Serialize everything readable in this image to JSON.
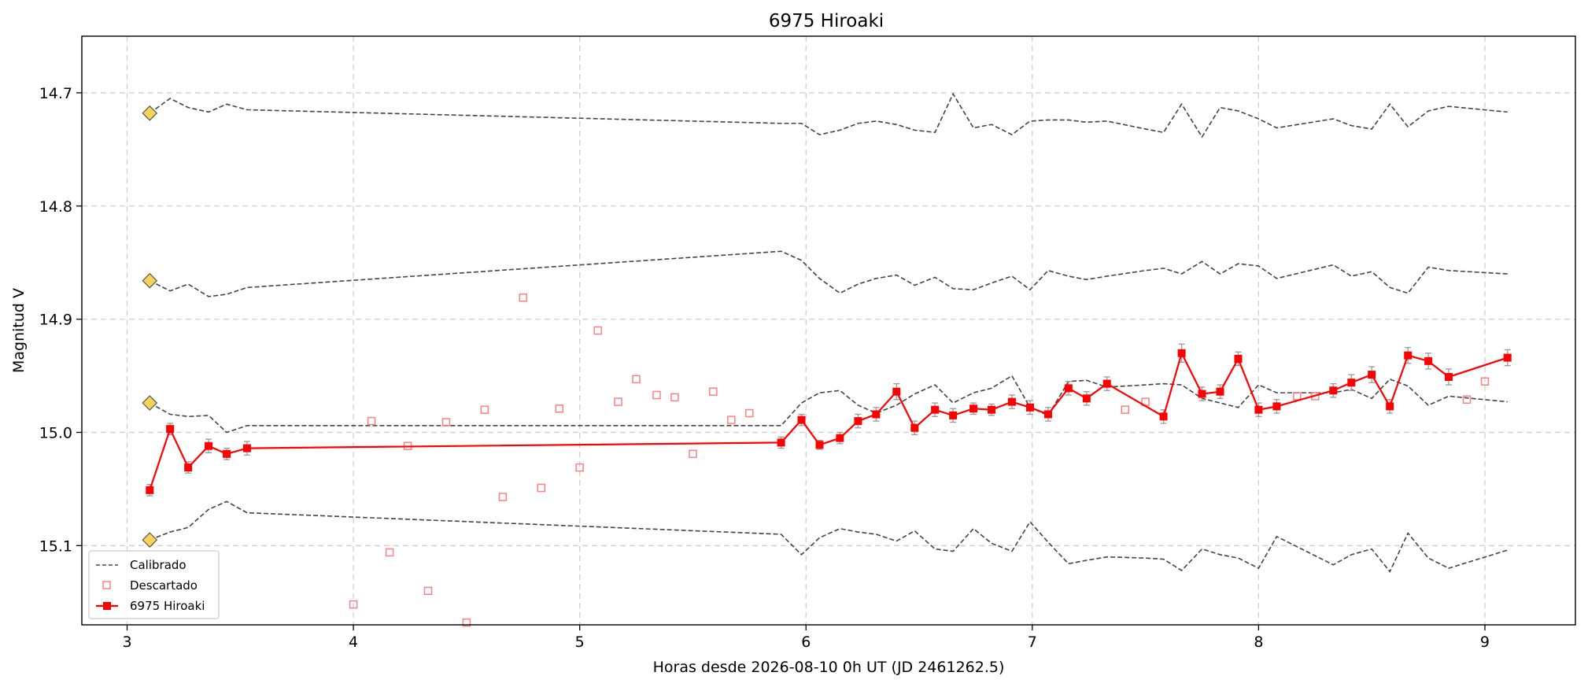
{
  "chart_data": {
    "type": "line",
    "title": "6975 Hiroaki",
    "xlabel": "Horas desde 2026-08-10 0h UT (JD 2461262.5)",
    "ylabel": "Magnitud V",
    "xlim": [
      2.8,
      9.4
    ],
    "ylim": [
      15.17,
      14.65
    ],
    "y_inverted": true,
    "x_ticks": [
      3,
      4,
      5,
      6,
      7,
      8,
      9
    ],
    "y_ticks": [
      14.7,
      14.8,
      14.9,
      15.0,
      15.1
    ],
    "x_tick_labels": [
      "3",
      "4",
      "5",
      "6",
      "7",
      "8",
      "9"
    ],
    "y_tick_labels": [
      "14.7",
      "14.8",
      "14.9",
      "15.0",
      "15.1"
    ],
    "grid": true,
    "legend_position": "bottom-left",
    "legend": [
      "Calibrado",
      "Descartado",
      "6975 Hiroaki"
    ],
    "colors": {
      "calibrado": "#444444",
      "descartado": "#ff8080",
      "target": "#ff0000",
      "marker_yellow": "#f7d35c",
      "errorbar": "#999999"
    },
    "calibrado_markers": {
      "x": 3.1,
      "y": [
        14.718,
        14.866,
        14.974,
        15.095
      ]
    },
    "calibrado_series": [
      {
        "x": [
          3.1,
          3.19,
          3.27,
          3.36,
          3.44,
          3.53,
          5.89,
          5.98,
          6.06,
          6.15,
          6.23,
          6.31,
          6.4,
          6.48,
          6.57,
          6.65,
          6.74,
          6.82,
          6.91,
          6.99,
          7.07,
          7.16,
          7.24,
          7.33,
          7.5,
          7.58,
          7.66,
          7.75,
          7.83,
          7.91,
          8.0,
          8.08,
          8.33,
          8.41,
          8.5,
          8.58,
          8.66,
          8.75,
          8.84,
          9.1
        ],
        "y": [
          14.718,
          14.705,
          14.713,
          14.717,
          14.71,
          14.715,
          14.727,
          14.727,
          14.737,
          14.733,
          14.727,
          14.725,
          14.728,
          14.733,
          14.735,
          14.701,
          14.731,
          14.728,
          14.737,
          14.725,
          14.724,
          14.724,
          14.726,
          14.725,
          14.732,
          14.735,
          14.71,
          14.739,
          14.713,
          14.716,
          14.723,
          14.731,
          14.723,
          14.729,
          14.732,
          14.71,
          14.73,
          14.716,
          14.712,
          14.717
        ]
      },
      {
        "x": [
          3.1,
          3.19,
          3.27,
          3.36,
          3.44,
          3.53,
          5.89,
          5.98,
          6.06,
          6.15,
          6.23,
          6.31,
          6.4,
          6.48,
          6.57,
          6.65,
          6.74,
          6.82,
          6.91,
          6.99,
          7.07,
          7.16,
          7.24,
          7.33,
          7.5,
          7.58,
          7.66,
          7.75,
          7.83,
          7.91,
          8.0,
          8.08,
          8.33,
          8.41,
          8.5,
          8.58,
          8.66,
          8.75,
          8.84,
          9.1
        ],
        "y": [
          14.866,
          14.875,
          14.869,
          14.88,
          14.878,
          14.872,
          14.84,
          14.848,
          14.864,
          14.877,
          14.869,
          14.864,
          14.861,
          14.87,
          14.863,
          14.873,
          14.874,
          14.868,
          14.862,
          14.874,
          14.857,
          14.862,
          14.865,
          14.862,
          14.857,
          14.855,
          14.86,
          14.849,
          14.86,
          14.851,
          14.853,
          14.864,
          14.852,
          14.862,
          14.858,
          14.872,
          14.877,
          14.854,
          14.857,
          14.86
        ]
      },
      {
        "x": [
          3.1,
          3.19,
          3.27,
          3.36,
          3.44,
          3.53,
          5.89,
          5.98,
          6.06,
          6.15,
          6.23,
          6.31,
          6.4,
          6.48,
          6.57,
          6.65,
          6.74,
          6.82,
          6.91,
          6.99,
          7.07,
          7.16,
          7.24,
          7.33,
          7.5,
          7.58,
          7.66,
          7.75,
          7.83,
          7.91,
          8.0,
          8.08,
          8.33,
          8.41,
          8.5,
          8.58,
          8.66,
          8.75,
          8.84,
          9.1
        ],
        "y": [
          14.974,
          14.984,
          14.986,
          14.985,
          15.0,
          14.994,
          14.994,
          14.974,
          14.965,
          14.963,
          14.976,
          14.983,
          14.976,
          14.966,
          14.958,
          14.974,
          14.965,
          14.961,
          14.95,
          14.978,
          14.985,
          14.955,
          14.954,
          14.96,
          14.958,
          14.957,
          14.958,
          14.97,
          14.974,
          14.978,
          14.958,
          14.965,
          14.965,
          14.962,
          14.97,
          14.953,
          14.959,
          14.976,
          14.968,
          14.973
        ]
      },
      {
        "x": [
          3.1,
          3.19,
          3.27,
          3.36,
          3.44,
          3.53,
          5.89,
          5.98,
          6.06,
          6.15,
          6.23,
          6.31,
          6.4,
          6.48,
          6.57,
          6.65,
          6.74,
          6.82,
          6.91,
          6.99,
          7.07,
          7.16,
          7.24,
          7.33,
          7.5,
          7.58,
          7.66,
          7.75,
          7.83,
          7.91,
          8.0,
          8.08,
          8.33,
          8.41,
          8.5,
          8.58,
          8.66,
          8.75,
          8.84,
          9.1
        ],
        "y": [
          15.095,
          15.088,
          15.084,
          15.068,
          15.061,
          15.071,
          15.09,
          15.108,
          15.093,
          15.085,
          15.088,
          15.09,
          15.096,
          15.087,
          15.103,
          15.105,
          15.085,
          15.098,
          15.105,
          15.079,
          15.097,
          15.116,
          15.113,
          15.11,
          15.111,
          15.112,
          15.122,
          15.103,
          15.108,
          15.111,
          15.12,
          15.092,
          15.117,
          15.108,
          15.103,
          15.123,
          15.089,
          15.111,
          15.12,
          15.104
        ]
      }
    ],
    "target_series": {
      "name": "6975 Hiroaki",
      "x": [
        3.1,
        3.19,
        3.27,
        3.36,
        3.44,
        3.53,
        5.89,
        5.98,
        6.06,
        6.15,
        6.23,
        6.31,
        6.4,
        6.48,
        6.57,
        6.65,
        6.74,
        6.82,
        6.91,
        6.99,
        7.07,
        7.16,
        7.24,
        7.33,
        7.58,
        7.66,
        7.75,
        7.83,
        7.91,
        8.0,
        8.08,
        8.33,
        8.41,
        8.5,
        8.58,
        8.66,
        8.75,
        8.84,
        9.1
      ],
      "y": [
        15.051,
        14.997,
        15.031,
        15.012,
        15.019,
        15.014,
        15.009,
        14.989,
        15.011,
        15.005,
        14.99,
        14.984,
        14.964,
        14.996,
        14.98,
        14.985,
        14.979,
        14.98,
        14.973,
        14.978,
        14.984,
        14.961,
        14.97,
        14.957,
        14.986,
        14.93,
        14.966,
        14.964,
        14.935,
        14.98,
        14.977,
        14.963,
        14.956,
        14.949,
        14.977,
        14.932,
        14.937,
        14.951,
        14.934
      ],
      "err": [
        0.005,
        0.005,
        0.005,
        0.006,
        0.005,
        0.006,
        0.005,
        0.005,
        0.004,
        0.005,
        0.006,
        0.006,
        0.007,
        0.006,
        0.006,
        0.006,
        0.005,
        0.005,
        0.006,
        0.006,
        0.006,
        0.006,
        0.006,
        0.006,
        0.006,
        0.008,
        0.006,
        0.006,
        0.006,
        0.006,
        0.006,
        0.006,
        0.007,
        0.007,
        0.006,
        0.007,
        0.007,
        0.007,
        0.007
      ]
    },
    "descartado": {
      "name": "Descartado",
      "x": [
        4.0,
        4.08,
        4.16,
        4.24,
        4.33,
        4.41,
        4.5,
        4.58,
        4.66,
        4.75,
        4.83,
        4.91,
        5.0,
        5.08,
        5.17,
        5.25,
        5.34,
        5.42,
        5.5,
        5.59,
        5.67,
        5.75,
        7.41,
        7.5,
        8.17,
        8.25,
        8.92,
        9.0
      ],
      "y": [
        15.152,
        14.99,
        15.106,
        15.012,
        15.14,
        14.991,
        15.168,
        14.98,
        15.057,
        14.881,
        15.049,
        14.979,
        15.031,
        14.91,
        14.973,
        14.953,
        14.967,
        14.969,
        15.019,
        14.964,
        14.989,
        14.983,
        14.98,
        14.973,
        14.968,
        14.968,
        14.971,
        14.955
      ]
    }
  }
}
